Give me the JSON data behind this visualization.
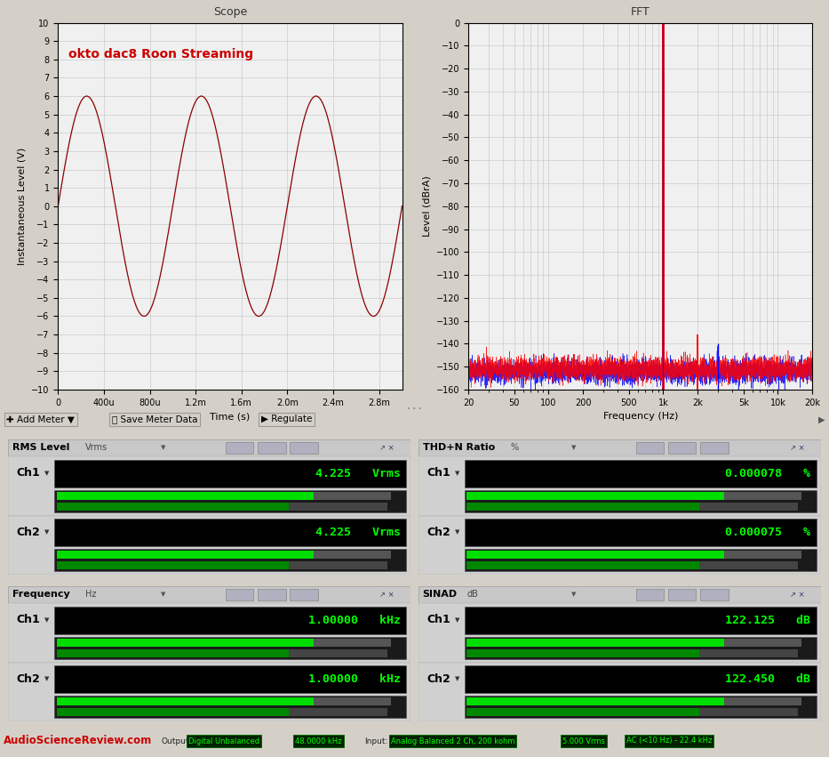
{
  "scope_title": "Scope",
  "fft_title": "FFT",
  "scope_annotation": "okto dac8 Roon Streaming",
  "scope_annotation_color": "#cc0000",
  "scope_ylabel": "Instantaneous Level (V)",
  "scope_xlabel": "Time (s)",
  "scope_ylim": [
    -10,
    10
  ],
  "scope_yticks": [
    -10,
    -9,
    -8,
    -7,
    -6,
    -5,
    -4,
    -3,
    -2,
    -1,
    0,
    1,
    2,
    3,
    4,
    5,
    6,
    7,
    8,
    9,
    10
  ],
  "scope_amplitude": 6.0,
  "scope_frequency": 1000,
  "scope_duration": 0.003,
  "scope_color": "#8B0000",
  "fft_ylabel": "Level (dBrA)",
  "fft_xlabel": "Frequency (Hz)",
  "fft_ylim": [
    -160,
    0
  ],
  "fft_yticks": [
    0,
    -10,
    -20,
    -30,
    -40,
    -50,
    -60,
    -70,
    -80,
    -90,
    -100,
    -110,
    -120,
    -130,
    -140,
    -150,
    -160
  ],
  "bg_color": "#d4d0c8",
  "plot_bg_color": "#f0f0f0",
  "grid_color": "#cccccc",
  "meter_text_color": "#00ff00",
  "section_bg": "#d4d0c8",
  "asr_text_color": "#cc0000",
  "asr_website": "AudioScienceReview.com",
  "status_output_label": "Output:",
  "status_output_val1": "Digital Unbalanced",
  "status_output_val2": "48.0000 kHz",
  "status_input_label": "Input:",
  "status_input_val1": "Analog Balanced 2 Ch, 200 kohm",
  "status_input_val2": "5.000 Vrms",
  "status_input_val3": "AC (<10 Hz) - 22.4 kHz",
  "panel1_title": "RMS Level",
  "panel1_unit": "Vrms",
  "panel1_ch1_val": "4.225",
  "panel1_ch2_val": "4.225",
  "panel1_val_unit": "Vrms",
  "panel2_title": "THD+N Ratio",
  "panel2_unit": "%",
  "panel2_ch1_val": "0.000078",
  "panel2_ch2_val": "0.000075",
  "panel2_val_unit": "%",
  "panel3_title": "Frequency",
  "panel3_unit": "Hz",
  "panel3_ch1_val": "1.00000",
  "panel3_ch2_val": "1.00000",
  "panel3_val_unit": "kHz",
  "panel4_title": "SINAD",
  "panel4_unit": "dB",
  "panel4_ch1_val": "122.125",
  "panel4_ch2_val": "122.450",
  "panel4_val_unit": "dB",
  "toolbar_bg": "#c8c8c8",
  "toolbar_btn1": "Add Meter",
  "toolbar_btn2": "Save Meter Data",
  "toolbar_btn3": "Regulate",
  "scope_xtick_vals": [
    0,
    0.0004,
    0.0008,
    0.0012,
    0.0016,
    0.002,
    0.0024,
    0.0028
  ],
  "scope_xtick_labels": [
    "0",
    "400u",
    "800u",
    "1.2m",
    "1.6m",
    "2.0m",
    "2.4m",
    "2.8m"
  ],
  "fft_xtick_vals": [
    20,
    50,
    100,
    200,
    500,
    1000,
    2000,
    5000,
    10000,
    20000
  ],
  "fft_xtick_labels": [
    "20",
    "50",
    "100",
    "200",
    "500",
    "1k",
    "2k",
    "5k",
    "10k",
    "20k"
  ]
}
